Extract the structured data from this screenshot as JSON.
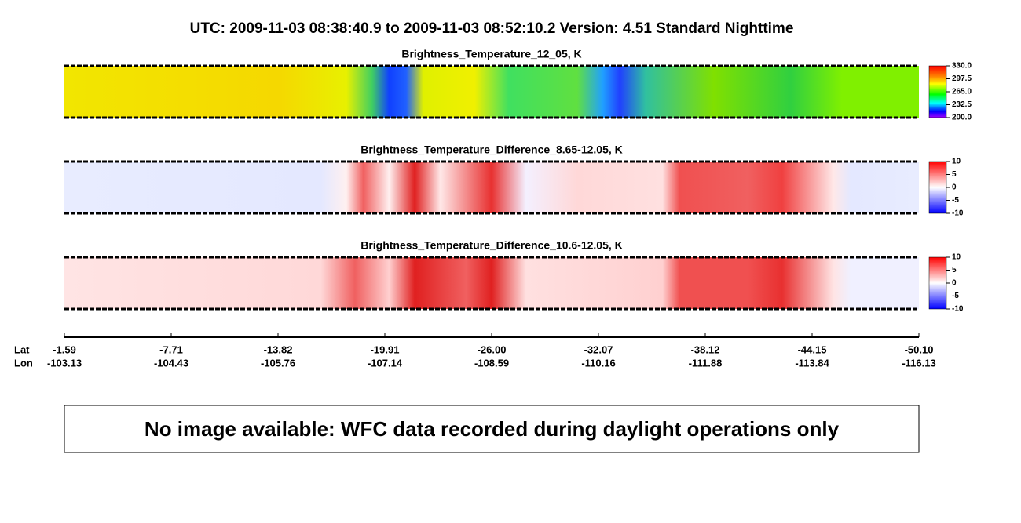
{
  "header": {
    "title": "UTC:  2009-11-03   08:38:40.9  to  2009-11-03   08:52:10.2    Version: 4.51  Standard Nighttime"
  },
  "panels": [
    {
      "title": "Brightness_Temperature_12_05, K",
      "colorbar": {
        "lim": [
          200,
          330
        ],
        "ticks": [
          {
            "value": 330,
            "label": "330.0"
          },
          297.5,
          {
            "value": 265,
            "label": "265.0"
          },
          232.5,
          {
            "value": 200,
            "label": "200.0"
          }
        ]
      }
    },
    {
      "title": "Brightness_Temperature_Difference_8.65-12.05, K",
      "colorbar": {
        "lim": [
          -10,
          10
        ],
        "ticks": [
          10,
          5,
          0,
          -5,
          -10
        ]
      }
    },
    {
      "title": "Brightness_Temperature_Difference_10.6-12.05, K",
      "colorbar": {
        "lim": [
          -10,
          10
        ],
        "ticks": [
          10,
          5,
          0,
          -5,
          -10
        ]
      }
    }
  ],
  "x_axis": {
    "lat_label": "Lat",
    "lon_label": "Lon",
    "lat_ticks": [
      -1.59,
      -7.71,
      -13.82,
      -19.91,
      {
        "value": -26.0,
        "label": "-26.00"
      },
      -32.07,
      -38.12,
      -44.15,
      {
        "value": -50.1,
        "label": "-50.10"
      }
    ],
    "lon_ticks": [
      -103.13,
      -104.43,
      -105.76,
      -107.14,
      -108.59,
      -110.16,
      -111.88,
      -113.84,
      -116.13
    ]
  },
  "message": "No image available: WFC data recorded during daylight operations only"
}
